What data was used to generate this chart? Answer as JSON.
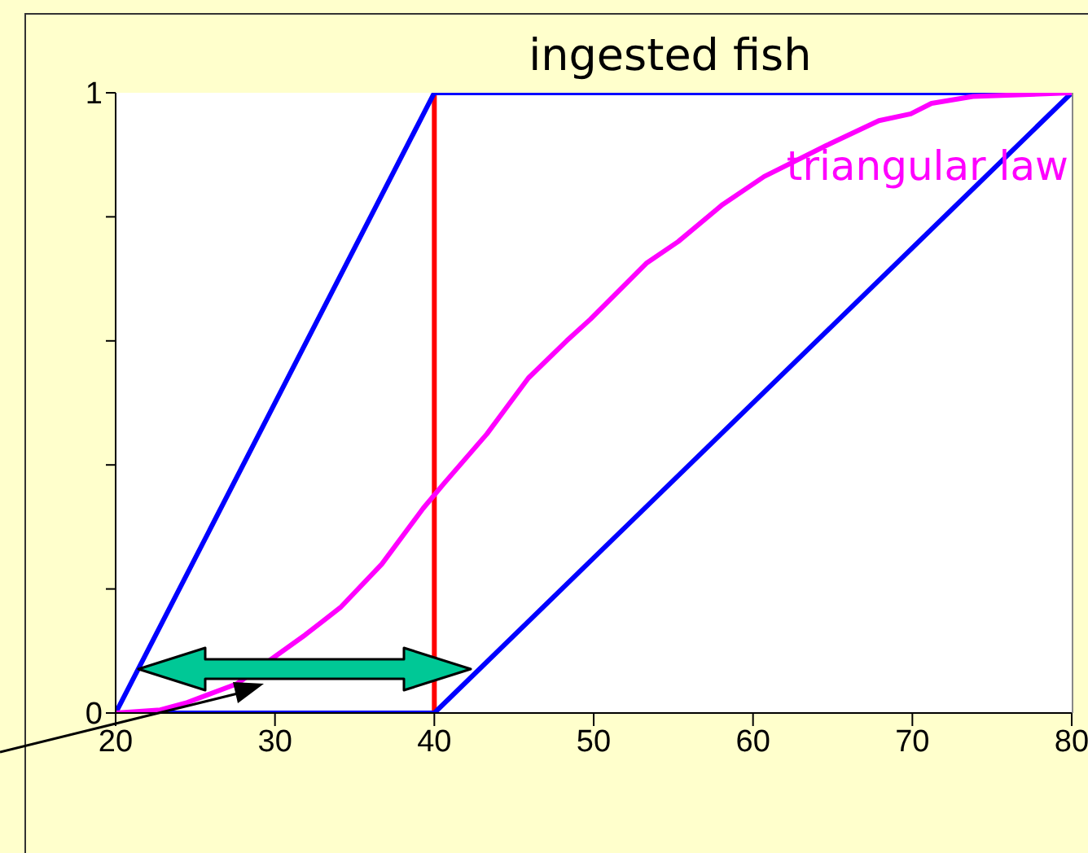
{
  "chart_data": {
    "type": "line",
    "title": "ingested fish",
    "xlim": [
      20,
      80
    ],
    "xticks": [
      20,
      30,
      40,
      50,
      60,
      70,
      80
    ],
    "ylim": [
      0,
      1
    ],
    "yticks": [
      0,
      {
        "value": 0.2,
        "label": null
      },
      {
        "value": 0.4,
        "label": null
      },
      {
        "value": 0.6,
        "label": null
      },
      {
        "value": 0.8,
        "label": null
      },
      1
    ],
    "marker": "none",
    "line_style": "solid",
    "series": [
      {
        "color": "#0000ff",
        "x": [
          20,
          40,
          80
        ],
        "values": [
          0,
          1,
          1
        ]
      },
      {
        "color": "#0000ff",
        "x": [
          20,
          40,
          80
        ],
        "values": [
          0,
          0,
          1
        ]
      },
      {
        "name": "triangular law",
        "color": "#ff00ff",
        "x": [
          20,
          22.8,
          24.5,
          27.6,
          31.9,
          34.1,
          36.7,
          39.3,
          40.6,
          43.3,
          45.9,
          48.3,
          49.8,
          53.3,
          55.3,
          58.1,
          60.7,
          64.6,
          67.9,
          69.9,
          71.2,
          73.8,
          80
        ],
        "values": [
          0,
          0.005,
          0.017,
          0.047,
          0.126,
          0.17,
          0.24,
          0.33,
          0.37,
          0.45,
          0.54,
          0.6,
          0.635,
          0.725,
          0.76,
          0.82,
          0.865,
          0.915,
          0.955,
          0.966,
          0.983,
          0.994,
          1
        ]
      }
    ],
    "ref_lines": [
      {
        "axis": "x",
        "value": 40,
        "color": "#ff0000"
      }
    ]
  }
}
